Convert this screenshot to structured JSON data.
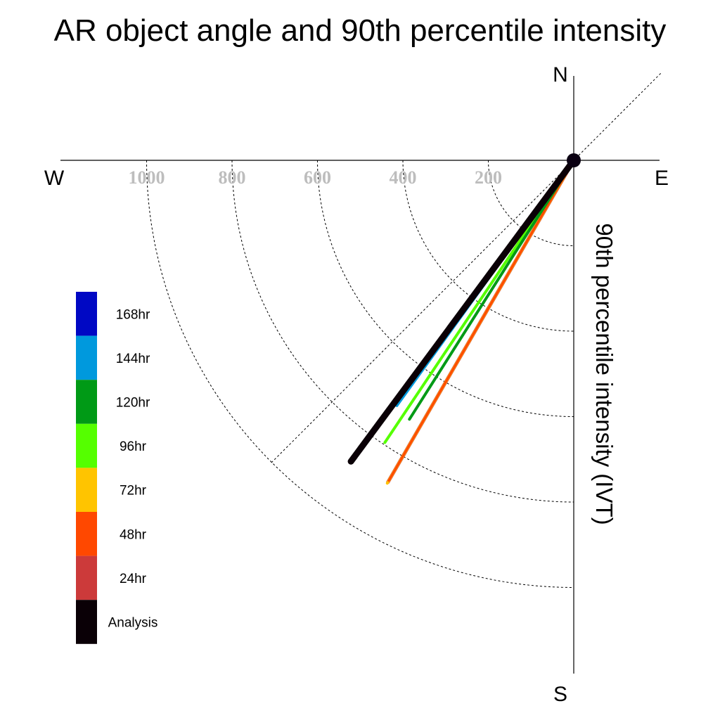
{
  "chart_data": {
    "type": "polar-vector",
    "title": "AR object angle and 90th percentile intensity",
    "axis_label": "90th percentile intensity (IVT)",
    "directions": {
      "north": "N",
      "south": "S",
      "east": "E",
      "west": "W"
    },
    "ring_values": [
      200,
      400,
      600,
      800,
      1000
    ],
    "ring_labels": [
      "200",
      "400",
      "600",
      "800",
      "1000"
    ],
    "grid": true,
    "legend_position": "left",
    "series": [
      {
        "name": "Analysis",
        "color": "#0a0006",
        "angle_deg": 216.5,
        "magnitude": 877
      },
      {
        "name": "24hr",
        "color": "#cc3a3a",
        "angle_deg": 210.0,
        "magnitude": 870
      },
      {
        "name": "48hr",
        "color": "#ff4800",
        "angle_deg": 210.0,
        "magnitude": 866
      },
      {
        "name": "72hr",
        "color": "#ffc400",
        "angle_deg": 210.0,
        "magnitude": 873
      },
      {
        "name": "96hr",
        "color": "#55ff00",
        "angle_deg": 213.8,
        "magnitude": 795
      },
      {
        "name": "120hr",
        "color": "#009a16",
        "angle_deg": 212.4,
        "magnitude": 718
      },
      {
        "name": "144hr",
        "color": "#0099dd",
        "angle_deg": 215.8,
        "magnitude": 708
      },
      {
        "name": "168hr",
        "color": "#0008c4",
        "angle_deg": 216.0,
        "magnitude": 335
      }
    ],
    "legend": [
      "168hr",
      "144hr",
      "120hr",
      "96hr",
      "72hr",
      "48hr",
      "24hr",
      "Analysis"
    ]
  }
}
